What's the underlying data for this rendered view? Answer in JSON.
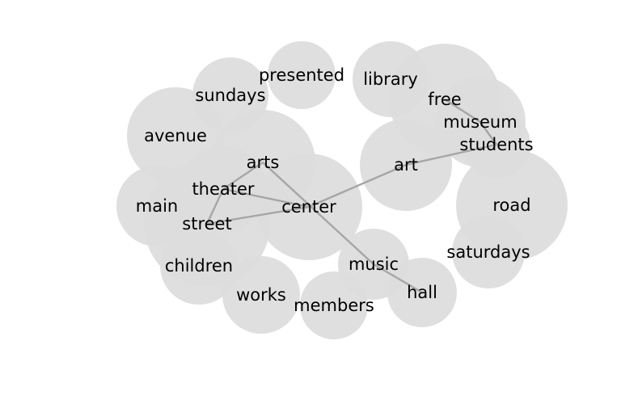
{
  "colors": {
    "bubble": "#dcdcdc",
    "edge": "#a6a6a6",
    "text": "#000000",
    "background": "#ffffff"
  },
  "words": [
    {
      "id": "presented",
      "label": "presented"
    },
    {
      "id": "library",
      "label": "library"
    },
    {
      "id": "free",
      "label": "free"
    },
    {
      "id": "sundays",
      "label": "sundays"
    },
    {
      "id": "museum",
      "label": "museum"
    },
    {
      "id": "avenue",
      "label": "avenue"
    },
    {
      "id": "students",
      "label": "students"
    },
    {
      "id": "arts",
      "label": "arts"
    },
    {
      "id": "art",
      "label": "art"
    },
    {
      "id": "theater",
      "label": "theater"
    },
    {
      "id": "main",
      "label": "main"
    },
    {
      "id": "center",
      "label": "center"
    },
    {
      "id": "road",
      "label": "road"
    },
    {
      "id": "street",
      "label": "street"
    },
    {
      "id": "saturdays",
      "label": "saturdays"
    },
    {
      "id": "children",
      "label": "children"
    },
    {
      "id": "music",
      "label": "music"
    },
    {
      "id": "hall",
      "label": "hall"
    },
    {
      "id": "works",
      "label": "works"
    },
    {
      "id": "members",
      "label": "members"
    }
  ],
  "edges": [
    [
      "center",
      "art"
    ],
    [
      "art",
      "students"
    ],
    [
      "center",
      "theater"
    ],
    [
      "center",
      "street"
    ],
    [
      "street",
      "theater"
    ],
    [
      "theater",
      "arts"
    ],
    [
      "arts",
      "music"
    ],
    [
      "music",
      "hall"
    ],
    [
      "free",
      "museum"
    ],
    [
      "museum",
      "students"
    ]
  ]
}
